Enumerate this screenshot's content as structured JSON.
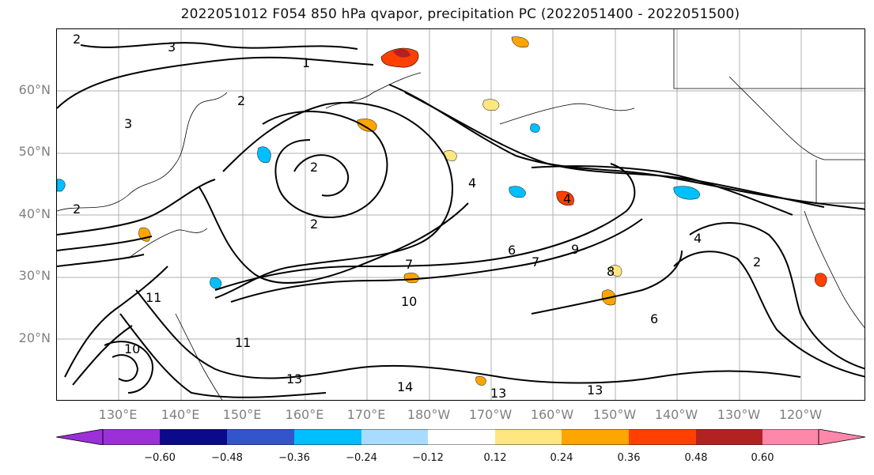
{
  "title": "2022051012 F054 850 hPa qvapor, precipitation PC (2022051400 - 2022051500)",
  "lat_labels": [
    "60°N",
    "50°N",
    "40°N",
    "30°N",
    "20°N"
  ],
  "lon_labels": [
    "130°E",
    "140°E",
    "150°E",
    "160°E",
    "170°E",
    "180°W",
    "170°W",
    "160°W",
    "150°W",
    "140°W",
    "130°W",
    "120°W"
  ],
  "colorbar": {
    "ticks": [
      "−0.60",
      "−0.48",
      "−0.36",
      "−0.24",
      "−0.12",
      "0.12",
      "0.24",
      "0.36",
      "0.48",
      "0.60"
    ],
    "colors": [
      "#9b30d8",
      "#0a0a8a",
      "#3355cc",
      "#00bfff",
      "#a8dcff",
      "#ffffff",
      "#ffe680",
      "#ffa500",
      "#ff4000",
      "#b22222",
      "#ff88aa"
    ]
  },
  "contour_labels": [
    "1",
    "2",
    "3",
    "4",
    "6",
    "7",
    "8",
    "9",
    "10",
    "11",
    "13",
    "14"
  ]
}
